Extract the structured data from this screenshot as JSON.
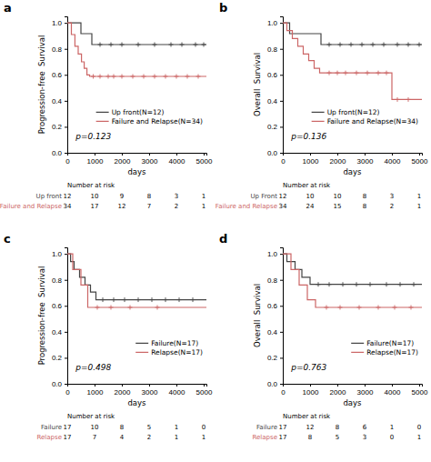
{
  "chart_data": [
    {
      "type": "step",
      "title": "a",
      "x_label": "days",
      "y_label": "Progression-free  Survival",
      "xlim": [
        0,
        5100
      ],
      "ylim": [
        0.0,
        1.05
      ],
      "xticks": [
        0,
        1000,
        2000,
        3000,
        4000,
        5000
      ],
      "yticks": [
        {
          "value": 0.0,
          "label": "0.0"
        },
        0.2,
        0.4,
        0.6,
        0.8,
        {
          "value": 1.0,
          "label": "1.0"
        }
      ],
      "grid": false,
      "legend": "lower right",
      "marker": "plus",
      "annotations": [
        {
          "text": "p=0.123"
        }
      ],
      "series": [
        {
          "name": "Up front(N=12)",
          "color": "#444444",
          "x": [
            0,
            500,
            500,
            900,
            900,
            5100
          ],
          "values": [
            1.0,
            1.0,
            0.917,
            0.917,
            0.833,
            0.833
          ],
          "censors": {
            "x": [
              1200,
              1600,
              2000,
              2600,
              3200,
              3800,
              4200,
              4700,
              5000
            ],
            "values": [
              0.833,
              0.833,
              0.833,
              0.833,
              0.833,
              0.833,
              0.833,
              0.833,
              0.833
            ]
          }
        },
        {
          "name": "Failure and Relapse(N=34)",
          "color": "#cc6666",
          "x": [
            0,
            150,
            150,
            280,
            280,
            400,
            400,
            520,
            520,
            620,
            620,
            720,
            720,
            820,
            820,
            5100
          ],
          "values": [
            1.0,
            1.0,
            0.91,
            0.91,
            0.82,
            0.82,
            0.76,
            0.76,
            0.7,
            0.7,
            0.65,
            0.65,
            0.6,
            0.6,
            0.588,
            0.588
          ],
          "censors": {
            "x": [
              950,
              1200,
              1500,
              1700,
              2000,
              2400,
              2800,
              3200,
              3600,
              4000,
              4400,
              4800
            ],
            "values": [
              0.588,
              0.588,
              0.588,
              0.588,
              0.588,
              0.588,
              0.588,
              0.588,
              0.588,
              0.588,
              0.588,
              0.588
            ]
          }
        }
      ],
      "risk_table": {
        "title": "Number at risk",
        "x": [
          0,
          1000,
          2000,
          3000,
          4000,
          5000
        ],
        "rows": [
          {
            "name": "Up front",
            "values": [
              12,
              10,
              9,
              8,
              3,
              1
            ]
          },
          {
            "name": "Failure and Relapse",
            "values": [
              34,
              17,
              12,
              7,
              2,
              1
            ]
          }
        ]
      }
    },
    {
      "type": "step",
      "title": "b",
      "x_label": "days",
      "y_label": "Overall  Survival",
      "xlim": [
        0,
        5100
      ],
      "ylim": [
        0.0,
        1.05
      ],
      "xticks": [
        0,
        1000,
        2000,
        3000,
        4000,
        5000
      ],
      "yticks": [
        {
          "value": 0.0,
          "label": "0.0"
        },
        0.2,
        0.4,
        0.6,
        0.8,
        {
          "value": 1.0,
          "label": "1.0"
        }
      ],
      "grid": false,
      "legend": "lower right",
      "marker": "plus",
      "annotations": [
        {
          "text": "p=0.136"
        }
      ],
      "series": [
        {
          "name": "Up front(N=12)",
          "color": "#444444",
          "x": [
            0,
            250,
            250,
            1400,
            1400,
            5100
          ],
          "values": [
            1.0,
            1.0,
            0.917,
            0.917,
            0.833,
            0.833
          ],
          "censors": {
            "x": [
              1700,
              2100,
              2500,
              2900,
              3300,
              3700,
              4200,
              4600,
              5000
            ],
            "values": [
              0.833,
              0.833,
              0.833,
              0.833,
              0.833,
              0.833,
              0.833,
              0.833,
              0.833
            ]
          }
        },
        {
          "name": "Failure and Relapse(N=34)",
          "color": "#cc6666",
          "x": [
            0,
            150,
            150,
            350,
            350,
            550,
            550,
            750,
            750,
            950,
            950,
            1150,
            1150,
            1350,
            1350,
            1550,
            1550,
            4000,
            4000,
            5100
          ],
          "values": [
            1.0,
            1.0,
            0.94,
            0.94,
            0.88,
            0.88,
            0.82,
            0.82,
            0.76,
            0.76,
            0.71,
            0.71,
            0.65,
            0.65,
            0.615,
            0.615,
            0.615,
            0.615,
            0.41,
            0.41
          ],
          "censors": {
            "x": [
              1700,
              2000,
              2300,
              2700,
              3100,
              3500,
              3800,
              4200,
              4600
            ],
            "values": [
              0.615,
              0.615,
              0.615,
              0.615,
              0.615,
              0.615,
              0.615,
              0.41,
              0.41
            ]
          }
        }
      ],
      "risk_table": {
        "title": "Number at risk",
        "x": [
          0,
          1000,
          2000,
          3000,
          4000,
          5000
        ],
        "rows": [
          {
            "name": "Up Front",
            "values": [
              12,
              10,
              10,
              8,
              3,
              1
            ]
          },
          {
            "name": "Failure and Relapse",
            "values": [
              34,
              24,
              15,
              8,
              2,
              1
            ]
          }
        ]
      }
    },
    {
      "type": "step",
      "title": "c",
      "x_label": "days",
      "y_label": "Progression-free  Survival",
      "xlim": [
        0,
        5100
      ],
      "ylim": [
        0.0,
        1.05
      ],
      "xticks": [
        0,
        1000,
        2000,
        3000,
        4000,
        5000
      ],
      "yticks": [
        {
          "value": 0.0,
          "label": "0.0"
        },
        0.2,
        0.4,
        0.6,
        0.8,
        {
          "value": 1.0,
          "label": "1.0"
        }
      ],
      "grid": false,
      "legend": "lower right",
      "marker": "plus",
      "annotations": [
        {
          "text": "p=0.498"
        }
      ],
      "series": [
        {
          "name": "Failure(N=17)",
          "color": "#444444",
          "x": [
            0,
            120,
            120,
            250,
            250,
            450,
            450,
            650,
            650,
            850,
            850,
            1050,
            1050,
            5100
          ],
          "values": [
            1.0,
            1.0,
            0.94,
            0.94,
            0.88,
            0.88,
            0.82,
            0.82,
            0.76,
            0.76,
            0.706,
            0.706,
            0.647,
            0.647
          ],
          "censors": {
            "x": [
              1300,
              1700,
              2100,
              2600,
              3100,
              3600,
              4100,
              4600
            ],
            "values": [
              0.647,
              0.647,
              0.647,
              0.647,
              0.647,
              0.647,
              0.647,
              0.647
            ]
          }
        },
        {
          "name": "Relapse(N=17)",
          "color": "#cc6666",
          "x": [
            0,
            200,
            200,
            500,
            500,
            750,
            750,
            5100
          ],
          "values": [
            1.0,
            1.0,
            0.88,
            0.88,
            0.76,
            0.76,
            0.588,
            0.588
          ],
          "censors": {
            "x": [
              1100,
              1600,
              2300,
              3300
            ],
            "values": [
              0.588,
              0.588,
              0.588,
              0.588
            ]
          }
        }
      ],
      "risk_table": {
        "title": "Number at risk",
        "x": [
          0,
          1000,
          2000,
          3000,
          4000,
          5000
        ],
        "rows": [
          {
            "name": "Failure",
            "values": [
              17,
              10,
              8,
              5,
              1,
              0
            ]
          },
          {
            "name": "Relapse",
            "values": [
              17,
              7,
              4,
              2,
              1,
              1
            ]
          }
        ]
      }
    },
    {
      "type": "step",
      "title": "d",
      "x_label": "days",
      "y_label": "Overall  Survival",
      "xlim": [
        0,
        5100
      ],
      "ylim": [
        0.0,
        1.05
      ],
      "xticks": [
        0,
        1000,
        2000,
        3000,
        4000,
        5000
      ],
      "yticks": [
        {
          "value": 0.0,
          "label": "0.0"
        },
        0.2,
        0.4,
        0.6,
        0.8,
        {
          "value": 1.0,
          "label": "1.0"
        }
      ],
      "grid": false,
      "legend": "lower right",
      "marker": "plus",
      "annotations": [
        {
          "text": "p=0.763"
        }
      ],
      "series": [
        {
          "name": "Failure(N=17)",
          "color": "#444444",
          "x": [
            0,
            150,
            150,
            450,
            450,
            700,
            700,
            1000,
            1000,
            5100
          ],
          "values": [
            1.0,
            1.0,
            0.94,
            0.94,
            0.88,
            0.88,
            0.82,
            0.82,
            0.765,
            0.765
          ],
          "censors": {
            "x": [
              1300,
              1700,
              2200,
              2700,
              3200,
              3800,
              4300,
              4800
            ],
            "values": [
              0.765,
              0.765,
              0.765,
              0.765,
              0.765,
              0.765,
              0.765,
              0.765
            ]
          }
        },
        {
          "name": "Relapse(N=17)",
          "color": "#cc6666",
          "x": [
            0,
            300,
            300,
            600,
            600,
            900,
            900,
            1200,
            1200,
            5100
          ],
          "values": [
            1.0,
            1.0,
            0.88,
            0.88,
            0.76,
            0.76,
            0.647,
            0.647,
            0.588,
            0.588
          ],
          "censors": {
            "x": [
              1600,
              2100,
              2800,
              3500,
              4100,
              4700
            ],
            "values": [
              0.588,
              0.588,
              0.588,
              0.588,
              0.588,
              0.588
            ]
          }
        }
      ],
      "risk_table": {
        "title": "Number at risk",
        "x": [
          0,
          1000,
          2000,
          3000,
          4000,
          5000
        ],
        "rows": [
          {
            "name": "Failure",
            "values": [
              17,
              12,
              8,
              6,
              1,
              0
            ]
          },
          {
            "name": "Relapse",
            "values": [
              17,
              8,
              5,
              3,
              0,
              1
            ]
          }
        ]
      }
    }
  ]
}
